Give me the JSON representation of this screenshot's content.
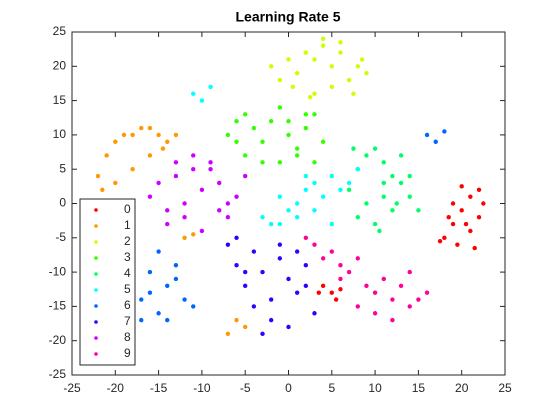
{
  "chart_data": {
    "type": "scatter",
    "title": "Learning Rate 5",
    "xlim": [
      -25,
      25
    ],
    "ylim": [
      -25,
      25
    ],
    "xticks": [
      -25,
      -20,
      -15,
      -10,
      -5,
      0,
      5,
      10,
      15,
      20,
      25
    ],
    "yticks": [
      -25,
      -20,
      -15,
      -10,
      -5,
      0,
      5,
      10,
      15,
      20,
      25
    ],
    "legend": "lower left",
    "series": [
      {
        "name": "0",
        "color": "#ff0000",
        "x": [
          18,
          19,
          20,
          21,
          22,
          19.5,
          21,
          22.5,
          20,
          18.5,
          21.5,
          17.5,
          20.5,
          22,
          4,
          5,
          6,
          5.5,
          3.5,
          19
        ],
        "values": [
          -5,
          -3,
          -1,
          1,
          2,
          -6,
          -4,
          0,
          2.5,
          -2,
          -6.5,
          -5.5,
          -3,
          -2,
          -12,
          -13,
          -12.5,
          -14,
          -13,
          0
        ]
      },
      {
        "name": "1",
        "color": "#ff9900",
        "x": [
          -22,
          -21,
          -20,
          -19,
          -18,
          -17,
          -16,
          -15,
          -14,
          -13,
          -21.5,
          -20,
          -18,
          -16,
          -12,
          -11,
          -6,
          -5,
          -7,
          -14.5
        ],
        "values": [
          4,
          7,
          9,
          10,
          10,
          11,
          11,
          10,
          9,
          10,
          2,
          3,
          5,
          7,
          -5,
          -4.5,
          -17,
          -18,
          -19,
          8
        ]
      },
      {
        "name": "2",
        "color": "#ccff00",
        "x": [
          -2,
          0,
          2,
          4,
          6,
          8,
          9,
          -1,
          1,
          3,
          5,
          7,
          3,
          5,
          6,
          4,
          0.5,
          2.5,
          8.5,
          7.5
        ],
        "values": [
          20,
          21,
          22,
          23,
          22,
          20,
          19,
          18,
          19,
          21,
          20,
          18,
          16,
          17,
          23.5,
          24,
          17,
          15.5,
          21,
          16
        ]
      },
      {
        "name": "3",
        "color": "#33ff00",
        "x": [
          -7,
          -6,
          -5,
          -4,
          -3,
          -2,
          -1,
          0,
          1,
          2,
          3,
          4,
          -5,
          -3,
          -1,
          1,
          3,
          -6,
          0,
          2
        ],
        "values": [
          10,
          12,
          13,
          11,
          9,
          12,
          14,
          10,
          8,
          11,
          13,
          9,
          7,
          6,
          6,
          7,
          6,
          9,
          12,
          13
        ]
      },
      {
        "name": "4",
        "color": "#00ff66",
        "x": [
          7,
          8,
          9,
          10,
          11,
          12,
          13,
          14,
          15,
          8,
          10,
          12,
          14,
          9,
          11,
          13,
          7.5,
          10.5,
          12.5,
          11
        ],
        "values": [
          2,
          5,
          7,
          8,
          6,
          4,
          3,
          1,
          -1,
          -2,
          -3,
          -1,
          4,
          0,
          1,
          7,
          8,
          -4,
          0,
          3
        ]
      },
      {
        "name": "5",
        "color": "#00ffff",
        "x": [
          -3,
          -2,
          -1,
          0,
          1,
          2,
          3,
          4,
          5,
          6,
          7,
          8,
          -1,
          1,
          3,
          5,
          2,
          -11,
          -10,
          -9
        ],
        "values": [
          -2,
          -3,
          1,
          -1,
          0,
          2,
          3,
          1,
          4,
          2,
          3,
          5,
          -3,
          -2,
          -1,
          -3,
          4,
          16,
          15,
          17
        ]
      },
      {
        "name": "6",
        "color": "#0066ff",
        "x": [
          -20,
          -19,
          -18,
          -17,
          -16,
          -15,
          -14,
          -13,
          -12,
          -11,
          -19,
          -17,
          -15,
          -13,
          -16,
          -18,
          16,
          17,
          18,
          -14
        ],
        "values": [
          -10,
          -12,
          -8,
          -14,
          -10,
          -16,
          -12,
          -9,
          -14,
          -15,
          -15,
          -17,
          -7,
          -11,
          -13,
          -7,
          10,
          9,
          10.5,
          -17
        ]
      },
      {
        "name": "7",
        "color": "#3300ff",
        "x": [
          -7,
          -6,
          -5,
          -4,
          -3,
          -2,
          -1,
          0,
          1,
          2,
          3,
          -6,
          -4,
          -2,
          0,
          2,
          -3,
          -1,
          1,
          -5
        ],
        "values": [
          -6,
          -9,
          -12,
          -7,
          -10,
          -14,
          -8,
          -11,
          -13,
          -9,
          -16,
          -5,
          -15,
          -17,
          -18,
          -12,
          -19,
          -6,
          -7,
          -10
        ]
      },
      {
        "name": "8",
        "color": "#cc00ff",
        "x": [
          -16,
          -15,
          -14,
          -13,
          -12,
          -11,
          -10,
          -9,
          -8,
          -7,
          -6,
          -5,
          -14,
          -12,
          -10,
          -8,
          -13,
          -11,
          -9,
          -7
        ],
        "values": [
          1,
          3,
          -1,
          4,
          0,
          5,
          2,
          6,
          3,
          -2,
          1,
          4,
          -3,
          -2,
          -4,
          -1,
          6,
          7,
          5,
          0
        ]
      },
      {
        "name": "9",
        "color": "#ff0099",
        "x": [
          2,
          3,
          4,
          5,
          6,
          7,
          8,
          9,
          10,
          11,
          12,
          13,
          14,
          15,
          16,
          8,
          10,
          12,
          6,
          14
        ],
        "values": [
          -5,
          -6,
          -8,
          -7,
          -9,
          -10,
          -8,
          -12,
          -13,
          -11,
          -14,
          -12,
          -15,
          -14,
          -13,
          -15,
          -16,
          -17,
          -11,
          -10
        ]
      }
    ]
  }
}
